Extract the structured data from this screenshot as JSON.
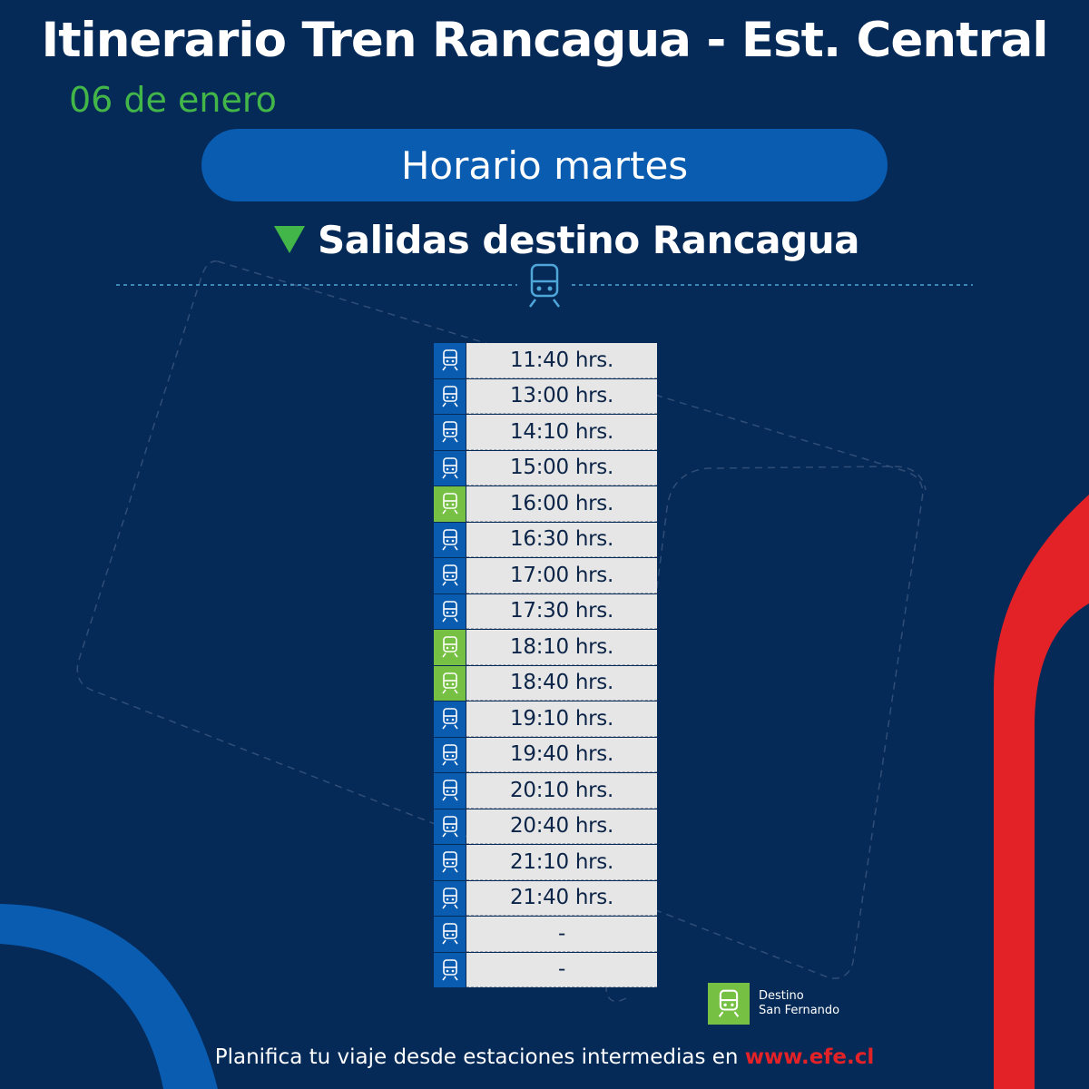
{
  "header": {
    "title": "Itinerario Tren Rancagua - Est. Central",
    "date": "06 de enero"
  },
  "schedule_label": "Horario martes",
  "direction": "Salidas destino Rancagua",
  "departures": [
    {
      "time": "11:40 hrs.",
      "destination": "Rancagua"
    },
    {
      "time": "13:00 hrs.",
      "destination": "Rancagua"
    },
    {
      "time": "14:10 hrs.",
      "destination": "Rancagua"
    },
    {
      "time": "15:00 hrs.",
      "destination": "Rancagua"
    },
    {
      "time": "16:00 hrs.",
      "destination": "San Fernando"
    },
    {
      "time": "16:30 hrs.",
      "destination": "Rancagua"
    },
    {
      "time": "17:00 hrs.",
      "destination": "Rancagua"
    },
    {
      "time": "17:30 hrs.",
      "destination": "Rancagua"
    },
    {
      "time": "18:10 hrs.",
      "destination": "San Fernando"
    },
    {
      "time": "18:40 hrs.",
      "destination": "San Fernando"
    },
    {
      "time": "19:10 hrs.",
      "destination": "Rancagua"
    },
    {
      "time": "19:40 hrs.",
      "destination": "Rancagua"
    },
    {
      "time": "20:10 hrs.",
      "destination": "Rancagua"
    },
    {
      "time": "20:40 hrs.",
      "destination": "Rancagua"
    },
    {
      "time": "21:10 hrs.",
      "destination": "Rancagua"
    },
    {
      "time": "21:40 hrs.",
      "destination": "Rancagua"
    },
    {
      "time": "-",
      "destination": "Rancagua"
    },
    {
      "time": "-",
      "destination": "Rancagua"
    }
  ],
  "legend": {
    "icon": "train-icon",
    "line1": "Destino",
    "line2": "San Fernando"
  },
  "footer": {
    "text": "Planifica tu viaje desde estaciones intermedias en ",
    "url": "www.efe.cl"
  },
  "colors": {
    "background": "#052a57",
    "pill": "#0a5cb0",
    "accent_green": "#76c043",
    "date_green": "#43b649",
    "accent_red": "#e32228",
    "row_bg": "#e6e6e6",
    "row_icon_blue": "#0a5cb0"
  }
}
